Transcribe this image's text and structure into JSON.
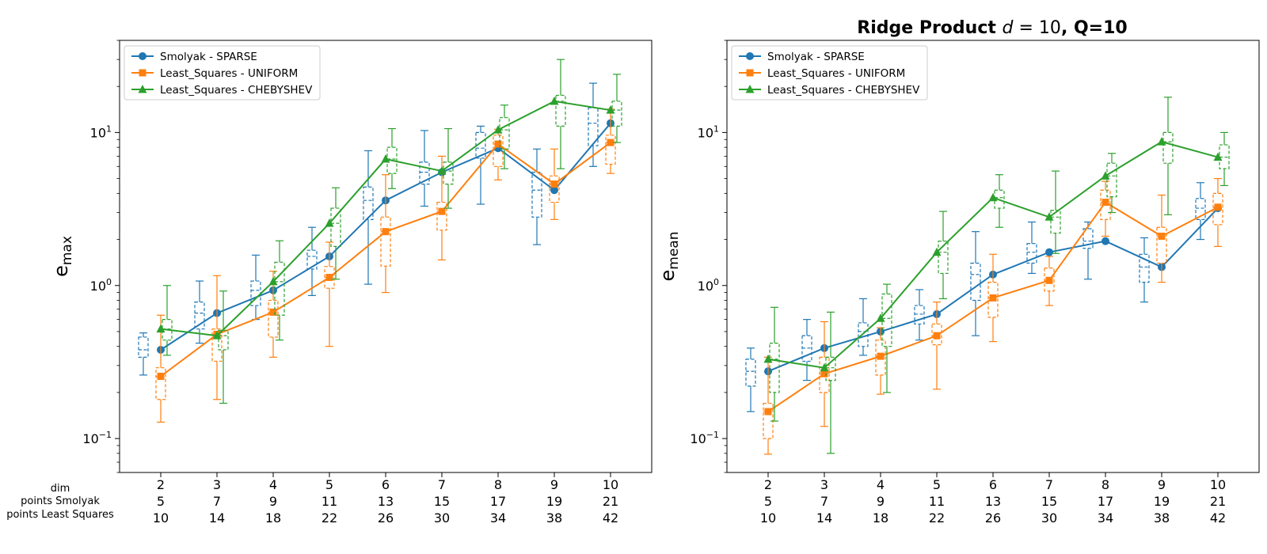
{
  "figure_title": "Ridge Product d = 10, Q=10",
  "title_parts": {
    "bold_a": "Ridge Product ",
    "italic_d": "d",
    "eq": " = 10",
    "bold_b": ", Q=10"
  },
  "row_labels": [
    "dim",
    "points Smolyak",
    "points Least Squares"
  ],
  "table": {
    "dim": [
      "2",
      "3",
      "4",
      "5",
      "6",
      "7",
      "8",
      "9",
      "10"
    ],
    "points_smolyak": [
      "5",
      "7",
      "9",
      "11",
      "13",
      "15",
      "17",
      "19",
      "21"
    ],
    "points_least_squares": [
      "10",
      "14",
      "18",
      "22",
      "26",
      "30",
      "34",
      "38",
      "42"
    ]
  },
  "chart_data": [
    {
      "type": "line",
      "ylabel": "e_max",
      "ylabel_parts": {
        "base": "e",
        "sub": "max"
      },
      "yscale": "log",
      "ylim": [
        0.06,
        40
      ],
      "yticks": [
        {
          "value": 0.1,
          "base": "10",
          "exp": "−1"
        },
        {
          "value": 1,
          "base": "10",
          "exp": "0"
        },
        {
          "value": 10,
          "base": "10",
          "exp": "1"
        }
      ],
      "x": [
        2,
        3,
        4,
        5,
        6,
        7,
        8,
        9,
        10
      ],
      "legend_position": "top-left",
      "series": [
        {
          "name": "Smolyak - SPARSE",
          "color": "#1f77b4",
          "marker": "circle",
          "values": [
            0.38,
            0.66,
            0.93,
            1.55,
            3.6,
            5.5,
            7.9,
            4.2,
            11.5
          ],
          "box": [
            {
              "q1": 0.34,
              "q3": 0.46,
              "lo": 0.26,
              "hi": 0.49
            },
            {
              "q1": 0.52,
              "q3": 0.78,
              "lo": 0.42,
              "hi": 1.07
            },
            {
              "q1": 0.74,
              "q3": 1.07,
              "lo": 0.6,
              "hi": 1.58
            },
            {
              "q1": 1.28,
              "q3": 1.7,
              "lo": 0.86,
              "hi": 2.4
            },
            {
              "q1": 2.7,
              "q3": 4.4,
              "lo": 1.02,
              "hi": 7.6
            },
            {
              "q1": 4.6,
              "q3": 6.4,
              "lo": 3.3,
              "hi": 10.3
            },
            {
              "q1": 6.8,
              "q3": 10.0,
              "lo": 3.4,
              "hi": 11.0
            },
            {
              "q1": 2.8,
              "q3": 5.5,
              "lo": 1.85,
              "hi": 7.8
            },
            {
              "q1": 8.2,
              "q3": 14.5,
              "lo": 6.0,
              "hi": 21.0
            }
          ]
        },
        {
          "name": "Least_Squares - UNIFORM",
          "color": "#ff7f0e",
          "marker": "square",
          "values": [
            0.255,
            0.48,
            0.67,
            1.13,
            2.25,
            3.05,
            8.4,
            4.6,
            8.6
          ],
          "box": [
            {
              "q1": 0.18,
              "q3": 0.29,
              "lo": 0.128,
              "hi": 0.64
            },
            {
              "q1": 0.32,
              "q3": 0.52,
              "lo": 0.18,
              "hi": 1.16
            },
            {
              "q1": 0.46,
              "q3": 0.8,
              "lo": 0.34,
              "hi": 1.24
            },
            {
              "q1": 0.96,
              "q3": 1.33,
              "lo": 0.4,
              "hi": 1.92
            },
            {
              "q1": 1.34,
              "q3": 2.8,
              "lo": 0.9,
              "hi": 5.3
            },
            {
              "q1": 2.3,
              "q3": 3.5,
              "lo": 1.47,
              "hi": 7.0
            },
            {
              "q1": 6.0,
              "q3": 9.6,
              "lo": 4.9,
              "hi": 10.5
            },
            {
              "q1": 3.5,
              "q3": 5.2,
              "lo": 2.7,
              "hi": 7.8
            },
            {
              "q1": 6.2,
              "q3": 9.6,
              "lo": 5.4,
              "hi": 14.2
            }
          ]
        },
        {
          "name": "Least_Squares - CHEBYSHEV",
          "color": "#2ca02c",
          "marker": "triangle",
          "values": [
            0.52,
            0.47,
            1.06,
            2.55,
            6.7,
            5.6,
            10.4,
            16.0,
            14.0
          ],
          "box": [
            {
              "q1": 0.44,
              "q3": 0.6,
              "lo": 0.35,
              "hi": 1.0
            },
            {
              "q1": 0.38,
              "q3": 0.51,
              "lo": 0.17,
              "hi": 0.92
            },
            {
              "q1": 0.64,
              "q3": 1.42,
              "lo": 0.44,
              "hi": 1.96
            },
            {
              "q1": 1.8,
              "q3": 3.2,
              "lo": 1.1,
              "hi": 4.35
            },
            {
              "q1": 5.4,
              "q3": 8.0,
              "lo": 4.3,
              "hi": 10.6
            },
            {
              "q1": 4.6,
              "q3": 6.4,
              "lo": 3.2,
              "hi": 10.6
            },
            {
              "q1": 7.8,
              "q3": 12.5,
              "lo": 5.8,
              "hi": 15.1
            },
            {
              "q1": 11.0,
              "q3": 17.5,
              "lo": 5.8,
              "hi": 30.0
            },
            {
              "q1": 11.0,
              "q3": 16.0,
              "lo": 8.6,
              "hi": 24.0
            }
          ]
        }
      ]
    },
    {
      "type": "line",
      "ylabel": "e_mean",
      "ylabel_parts": {
        "base": "e",
        "sub": "mean"
      },
      "yscale": "log",
      "ylim": [
        0.06,
        40
      ],
      "yticks": [
        {
          "value": 0.1,
          "base": "10",
          "exp": "−1"
        },
        {
          "value": 1,
          "base": "10",
          "exp": "0"
        },
        {
          "value": 10,
          "base": "10",
          "exp": "1"
        }
      ],
      "x": [
        2,
        3,
        4,
        5,
        6,
        7,
        8,
        9,
        10
      ],
      "legend_position": "top-left",
      "series": [
        {
          "name": "Smolyak - SPARSE",
          "color": "#1f77b4",
          "marker": "circle",
          "values": [
            0.275,
            0.39,
            0.5,
            0.65,
            1.18,
            1.65,
            1.95,
            1.32,
            3.2
          ],
          "box": [
            {
              "q1": 0.22,
              "q3": 0.33,
              "lo": 0.15,
              "hi": 0.39
            },
            {
              "q1": 0.32,
              "q3": 0.47,
              "lo": 0.24,
              "hi": 0.6
            },
            {
              "q1": 0.4,
              "q3": 0.57,
              "lo": 0.35,
              "hi": 0.82
            },
            {
              "q1": 0.56,
              "q3": 0.74,
              "lo": 0.44,
              "hi": 0.94
            },
            {
              "q1": 0.8,
              "q3": 1.4,
              "lo": 0.47,
              "hi": 2.25
            },
            {
              "q1": 1.4,
              "q3": 1.88,
              "lo": 1.2,
              "hi": 2.6
            },
            {
              "q1": 1.75,
              "q3": 2.35,
              "lo": 1.1,
              "hi": 2.6
            },
            {
              "q1": 1.05,
              "q3": 1.6,
              "lo": 0.78,
              "hi": 2.05
            },
            {
              "q1": 2.7,
              "q3": 3.7,
              "lo": 2.0,
              "hi": 4.7
            }
          ]
        },
        {
          "name": "Least_Squares - UNIFORM",
          "color": "#ff7f0e",
          "marker": "square",
          "values": [
            0.15,
            0.265,
            0.345,
            0.47,
            0.83,
            1.08,
            3.5,
            2.1,
            3.25
          ],
          "box": [
            {
              "q1": 0.1,
              "q3": 0.17,
              "lo": 0.079,
              "hi": 0.34
            },
            {
              "q1": 0.2,
              "q3": 0.34,
              "lo": 0.12,
              "hi": 0.58
            },
            {
              "q1": 0.26,
              "q3": 0.44,
              "lo": 0.195,
              "hi": 0.53
            },
            {
              "q1": 0.41,
              "q3": 0.56,
              "lo": 0.21,
              "hi": 0.78
            },
            {
              "q1": 0.62,
              "q3": 1.05,
              "lo": 0.43,
              "hi": 1.6
            },
            {
              "q1": 0.92,
              "q3": 1.3,
              "lo": 0.74,
              "hi": 1.55
            },
            {
              "q1": 2.7,
              "q3": 4.2,
              "lo": 2.1,
              "hi": 4.8
            },
            {
              "q1": 1.4,
              "q3": 2.4,
              "lo": 1.05,
              "hi": 3.9
            },
            {
              "q1": 2.5,
              "q3": 4.0,
              "lo": 1.8,
              "hi": 5.0
            }
          ]
        },
        {
          "name": "Least_Squares - CHEBYSHEV",
          "color": "#2ca02c",
          "marker": "triangle",
          "values": [
            0.33,
            0.29,
            0.61,
            1.65,
            3.75,
            2.8,
            5.2,
            8.7,
            6.9
          ],
          "box": [
            {
              "q1": 0.2,
              "q3": 0.42,
              "lo": 0.13,
              "hi": 0.72
            },
            {
              "q1": 0.24,
              "q3": 0.34,
              "lo": 0.08,
              "hi": 0.67
            },
            {
              "q1": 0.4,
              "q3": 0.88,
              "lo": 0.2,
              "hi": 1.02
            },
            {
              "q1": 1.2,
              "q3": 1.95,
              "lo": 0.82,
              "hi": 3.05
            },
            {
              "q1": 3.2,
              "q3": 4.2,
              "lo": 2.4,
              "hi": 5.3
            },
            {
              "q1": 2.2,
              "q3": 3.1,
              "lo": 1.62,
              "hi": 5.6
            },
            {
              "q1": 3.8,
              "q3": 6.3,
              "lo": 3.0,
              "hi": 7.3
            },
            {
              "q1": 6.3,
              "q3": 10.0,
              "lo": 2.9,
              "hi": 17.0
            },
            {
              "q1": 5.8,
              "q3": 8.3,
              "lo": 4.5,
              "hi": 10.0
            }
          ]
        }
      ]
    }
  ]
}
